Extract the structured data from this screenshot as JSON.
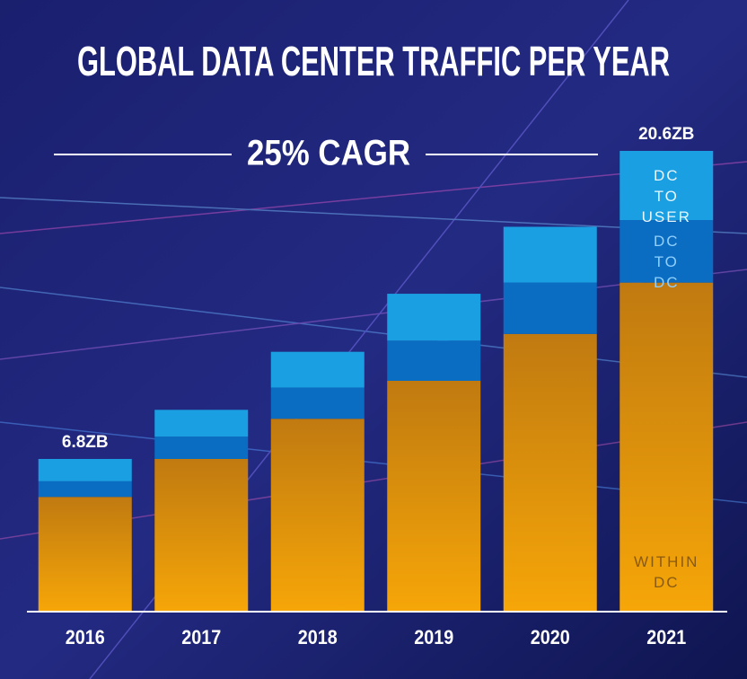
{
  "chart_data": {
    "type": "stacked-bar",
    "title": "GLOBAL DATA CENTER TRAFFIC PER YEAR",
    "subtitle": "25% CAGR",
    "categories": [
      "2016",
      "2017",
      "2018",
      "2019",
      "2020",
      "2021"
    ],
    "series": [
      {
        "name": "WITHIN DC",
        "color": "#f0a00c",
        "values": [
          5.1,
          6.8,
          8.6,
          10.3,
          12.4,
          14.7
        ]
      },
      {
        "name": "DC TO DC",
        "color": "#0b6dc2",
        "values": [
          0.7,
          1.0,
          1.4,
          1.8,
          2.3,
          2.8
        ]
      },
      {
        "name": "DC TO USER",
        "color": "#1aa0e2",
        "values": [
          1.0,
          1.2,
          1.6,
          2.1,
          2.5,
          3.1
        ]
      }
    ],
    "totals": [
      6.8,
      null,
      null,
      null,
      null,
      20.6
    ],
    "total_labels": [
      "6.8ZB",
      null,
      null,
      null,
      null,
      "20.6ZB"
    ]
  }
}
